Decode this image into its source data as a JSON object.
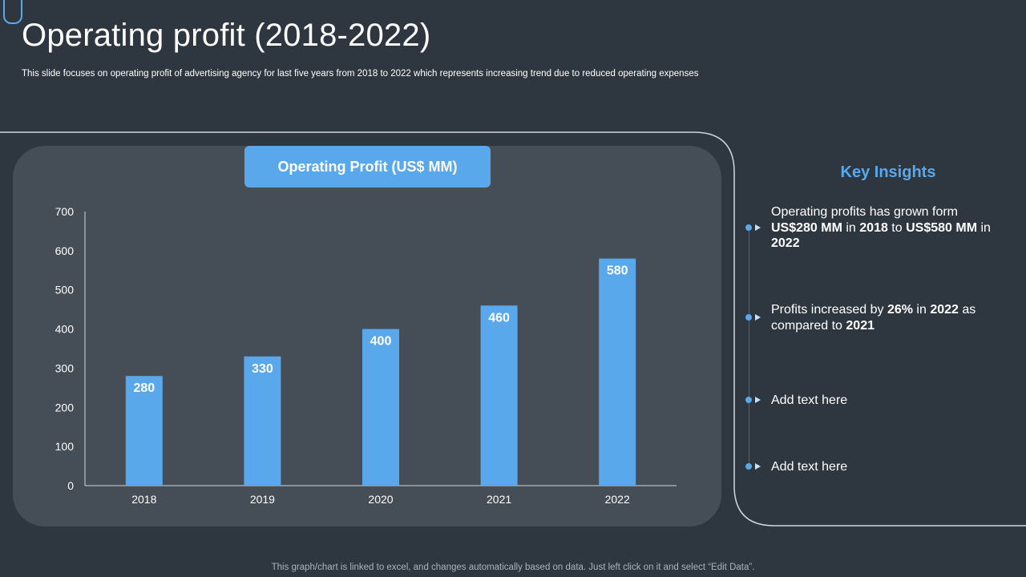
{
  "header": {
    "title": "Operating profit (2018-2022)",
    "subtitle": "This slide focuses on operating profit of advertising agency for last five years from 2018 to 2022 which represents increasing trend due to reduced operating expenses"
  },
  "chart_data": {
    "type": "bar",
    "title": "Operating Profit (US$ MM)",
    "categories": [
      "2018",
      "2019",
      "2020",
      "2021",
      "2022"
    ],
    "values": [
      280,
      330,
      400,
      460,
      580
    ],
    "ylim": [
      0,
      700
    ],
    "yticks": [
      0,
      100,
      200,
      300,
      400,
      500,
      600,
      700
    ],
    "data_labels": true,
    "grid": false,
    "bar_color": "#5aa8ec"
  },
  "insights": {
    "title": "Key Insights",
    "items": [
      {
        "segments": [
          {
            "text": "Operating profits has grown form ",
            "bold": false
          },
          {
            "text": "US$280 MM",
            "bold": true
          },
          {
            "text": " in ",
            "bold": false
          },
          {
            "text": "2018",
            "bold": true
          },
          {
            "text": " to ",
            "bold": false
          },
          {
            "text": "US$580 MM",
            "bold": true
          },
          {
            "text": " in ",
            "bold": false
          },
          {
            "text": "2022",
            "bold": true
          }
        ]
      },
      {
        "segments": [
          {
            "text": "Profits increased by ",
            "bold": false
          },
          {
            "text": "26%",
            "bold": true
          },
          {
            "text": " in ",
            "bold": false
          },
          {
            "text": "2022",
            "bold": true
          },
          {
            "text": " as compared to ",
            "bold": false
          },
          {
            "text": "2021",
            "bold": true
          }
        ]
      },
      {
        "segments": [
          {
            "text": "Add text here",
            "bold": false
          }
        ]
      },
      {
        "segments": [
          {
            "text": "Add text here",
            "bold": false
          }
        ]
      }
    ]
  },
  "footer": {
    "text": "This graph/chart is linked to excel,  and changes automatically based on data. Just left click on it and select “Edit Data”."
  },
  "colors": {
    "background": "#2e3740",
    "panel": "#454d56",
    "accent": "#5aa8ec"
  }
}
